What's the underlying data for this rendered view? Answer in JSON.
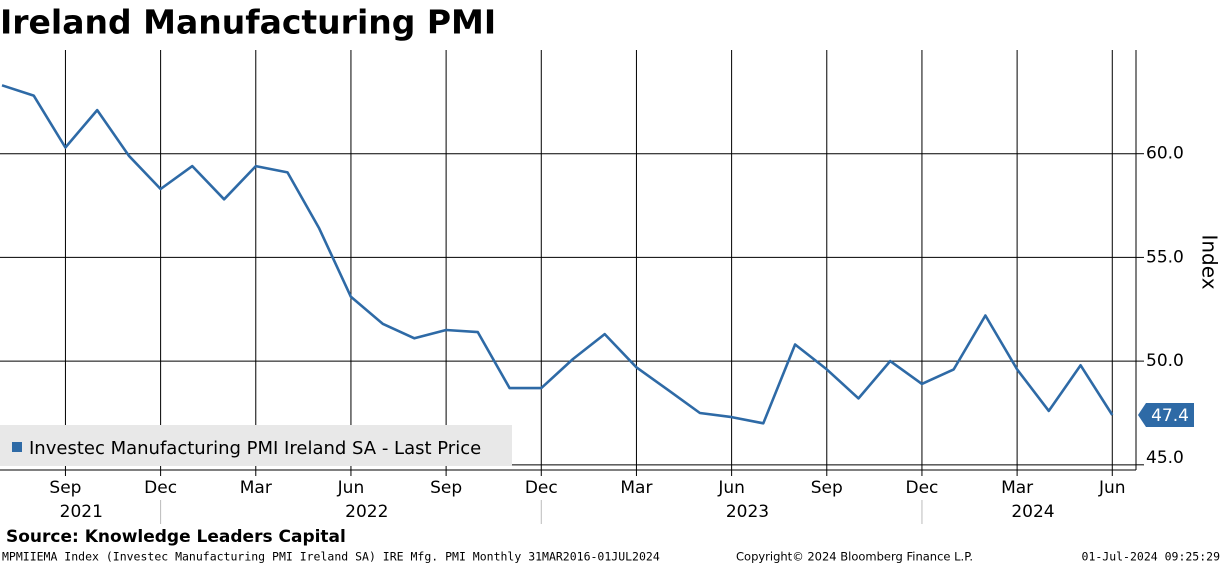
{
  "chart_data": {
    "type": "line",
    "title": "Ireland Manufacturing PMI",
    "x": [
      "2021-07",
      "2021-08",
      "2021-09",
      "2021-10",
      "2021-11",
      "2021-12",
      "2022-01",
      "2022-02",
      "2022-03",
      "2022-04",
      "2022-05",
      "2022-06",
      "2022-07",
      "2022-08",
      "2022-09",
      "2022-10",
      "2022-11",
      "2022-12",
      "2023-01",
      "2023-02",
      "2023-03",
      "2023-04",
      "2023-05",
      "2023-06",
      "2023-07",
      "2023-08",
      "2023-09",
      "2023-10",
      "2023-11",
      "2023-12",
      "2024-01",
      "2024-02",
      "2024-03",
      "2024-04",
      "2024-05",
      "2024-06"
    ],
    "series": [
      {
        "name": "Investec Manufacturing PMI Ireland SA - Last Price",
        "color": "#2e6aa6",
        "values": [
          63.3,
          62.8,
          60.3,
          62.1,
          59.9,
          58.3,
          59.4,
          57.8,
          59.4,
          59.1,
          56.4,
          53.1,
          51.8,
          51.1,
          51.5,
          51.4,
          48.7,
          48.7,
          50.1,
          51.3,
          49.7,
          48.6,
          47.5,
          47.3,
          47.0,
          50.8,
          49.6,
          48.2,
          50.0,
          48.9,
          49.6,
          52.2,
          49.6,
          47.6,
          49.8,
          47.4
        ]
      }
    ],
    "xlim": [
      "2021-07",
      "2024-07"
    ],
    "xticks": [
      {
        "value": "2021-09",
        "label": "Sep"
      },
      {
        "value": "2021-12",
        "label": "Dec"
      },
      {
        "value": "2022-03",
        "label": "Mar"
      },
      {
        "value": "2022-06",
        "label": "Jun"
      },
      {
        "value": "2022-09",
        "label": "Sep"
      },
      {
        "value": "2022-12",
        "label": "Dec"
      },
      {
        "value": "2023-03",
        "label": "Mar"
      },
      {
        "value": "2023-06",
        "label": "Jun"
      },
      {
        "value": "2023-09",
        "label": "Sep"
      },
      {
        "value": "2023-12",
        "label": "Dec"
      },
      {
        "value": "2024-03",
        "label": "Mar"
      },
      {
        "value": "2024-06",
        "label": "Jun"
      }
    ],
    "x_year_labels": [
      "2021",
      "2022",
      "2023",
      "2024"
    ],
    "ylim": [
      44.75,
      65
    ],
    "yticks": [
      {
        "value": 45,
        "label": "45.0"
      },
      {
        "value": 50,
        "label": "50.0"
      },
      {
        "value": 55,
        "label": "55.0"
      },
      {
        "value": 60,
        "label": "60.0"
      }
    ],
    "y_label": "Index",
    "grid": true,
    "legend": "lower-left",
    "source": "Source: Knowledge Leaders Capital",
    "footer_left": "MPMIIEMA Index (Investec Manufacturing PMI Ireland SA) IRE Mfg. PMI  Monthly 31MAR2016-01JUL2024",
    "footer_center": "Copyright© 2024 Bloomberg Finance L.P.",
    "footer_right": "01-Jul-2024 09:25:29"
  }
}
